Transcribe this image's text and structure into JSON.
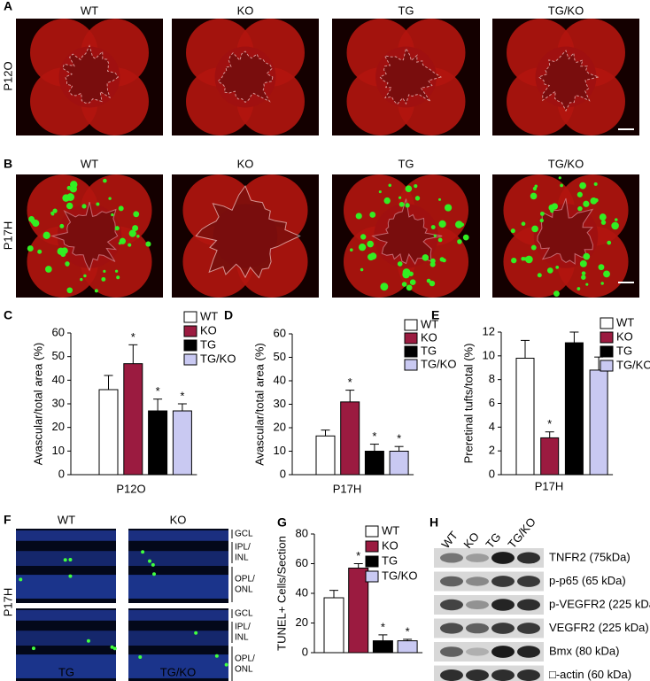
{
  "panel_a": {
    "letter": "A",
    "row_label": "P12O",
    "columns": [
      "WT",
      "KO",
      "TG",
      "TG/KO"
    ]
  },
  "panel_b": {
    "letter": "B",
    "row_label": "P17H",
    "columns": [
      "WT",
      "KO",
      "TG",
      "TG/KO"
    ]
  },
  "panel_f": {
    "letter": "F",
    "row_label": "P17H",
    "top_columns": [
      "WT",
      "KO"
    ],
    "bottom_columns": [
      "TG",
      "TG/KO"
    ],
    "layers": [
      [
        "GCL"
      ],
      [
        "IPL/",
        "INL"
      ],
      [
        "OPL/",
        "ONL"
      ]
    ]
  },
  "panel_h": {
    "letter": "H",
    "lanes": [
      "WT",
      "KO",
      "TG",
      "TG/KO"
    ],
    "bands": [
      "TNFR2 (75kDa)",
      "p-p65 (65 kDa)",
      "p-VEGFR2 (225 kDa)",
      "VEGFR2 (225 kDa)",
      "Bmx (80 kDa)",
      "□-actin (60 kDa)"
    ]
  },
  "chart_data": [
    {
      "type": "bar",
      "letter": "C",
      "ylabel": "Avascular/total area (%)",
      "xlabel": "P12O",
      "categories": [
        "WT",
        "KO",
        "TG",
        "TG/KO"
      ],
      "colors": [
        "#ffffff",
        "#9b1b40",
        "#000000",
        "#c9c9f2"
      ],
      "values": [
        36,
        47,
        27,
        27
      ],
      "errors": [
        6,
        8,
        5,
        3
      ],
      "significance": [
        null,
        "*",
        "*",
        "*"
      ],
      "ylim": [
        0,
        60
      ],
      "yticks": [
        0,
        10,
        20,
        30,
        40,
        50,
        60
      ]
    },
    {
      "type": "bar",
      "letter": "D",
      "ylabel": "Avascular/total area (%)",
      "xlabel": "P17H",
      "categories": [
        "WT",
        "KO",
        "TG",
        "TG/KO"
      ],
      "colors": [
        "#ffffff",
        "#9b1b40",
        "#000000",
        "#c9c9f2"
      ],
      "values": [
        16.5,
        31,
        10,
        10
      ],
      "errors": [
        2.5,
        5,
        3,
        2
      ],
      "significance": [
        null,
        "*",
        "*",
        "*"
      ],
      "ylim": [
        0,
        60
      ],
      "yticks": [
        0,
        10,
        20,
        30,
        40,
        50,
        60
      ]
    },
    {
      "type": "bar",
      "letter": "E",
      "ylabel": "Preretinal tufts/total (%)",
      "xlabel": "P17H",
      "categories": [
        "WT",
        "KO",
        "TG",
        "TG/KO"
      ],
      "colors": [
        "#ffffff",
        "#9b1b40",
        "#000000",
        "#c9c9f2"
      ],
      "values": [
        9.8,
        3.1,
        11.1,
        8.8
      ],
      "errors": [
        1.5,
        0.5,
        0.9,
        1.1
      ],
      "significance": [
        null,
        "*",
        null,
        null
      ],
      "ylim": [
        0,
        12
      ],
      "yticks": [
        0,
        2,
        4,
        6,
        8,
        10,
        12
      ]
    },
    {
      "type": "bar",
      "letter": "G",
      "ylabel": "TUNEL+ Cells/Section",
      "categories": [
        "WT",
        "KO",
        "TG",
        "TG/KO"
      ],
      "colors": [
        "#ffffff",
        "#9b1b40",
        "#000000",
        "#c9c9f2"
      ],
      "values": [
        37,
        57,
        8,
        8
      ],
      "errors": [
        5,
        3,
        4,
        1
      ],
      "significance": [
        null,
        "*",
        "*",
        "*"
      ],
      "ylim": [
        0,
        80
      ],
      "yticks": [
        0,
        20,
        40,
        60,
        80
      ]
    }
  ]
}
